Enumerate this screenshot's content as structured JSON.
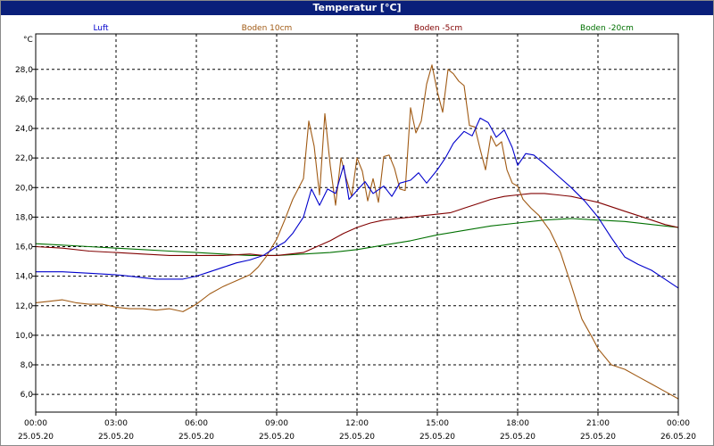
{
  "window": {
    "title": "Temperatur [°C]"
  },
  "chart_data": {
    "type": "line",
    "title": "Temperatur [°C]",
    "ylabel": "°C",
    "xlabel": "",
    "xlim": [
      0,
      24
    ],
    "ylim": [
      4.8,
      30.4
    ],
    "y_ticks": [
      6.0,
      8.0,
      10.0,
      12.0,
      14.0,
      16.0,
      18.0,
      20.0,
      22.0,
      24.0,
      26.0,
      28.0
    ],
    "y_tick_labels": [
      "6,0",
      "8,0",
      "10,0",
      "12,0",
      "14,0",
      "16,0",
      "18,0",
      "20,0",
      "22,0",
      "24,0",
      "26,0",
      "28,0"
    ],
    "x_ticks": [
      {
        "t": 0,
        "time": "00:00",
        "date": "25.05.20"
      },
      {
        "t": 3,
        "time": "03:00",
        "date": "25.05.20"
      },
      {
        "t": 6,
        "time": "06:00",
        "date": "25.05.20"
      },
      {
        "t": 9,
        "time": "09:00",
        "date": "25.05.20"
      },
      {
        "t": 12,
        "time": "12:00",
        "date": "25.05.20"
      },
      {
        "t": 15,
        "time": "15:00",
        "date": "25.05.20"
      },
      {
        "t": 18,
        "time": "18:00",
        "date": "25.05.20"
      },
      {
        "t": 21,
        "time": "21:00",
        "date": "25.05.20"
      },
      {
        "t": 24,
        "time": "00:00",
        "date": "26.05.20"
      }
    ],
    "grid": true,
    "series": [
      {
        "name": "Luft",
        "color": "#0000cc",
        "x": [
          0,
          1,
          2,
          3,
          3.5,
          4,
          4.5,
          5,
          5.5,
          6,
          6.5,
          7,
          7.5,
          8,
          8.5,
          9,
          9.3,
          9.6,
          10,
          10.3,
          10.6,
          10.9,
          11.2,
          11.5,
          11.7,
          12,
          12.3,
          12.6,
          13,
          13.3,
          13.6,
          14,
          14.3,
          14.6,
          15,
          15.3,
          15.6,
          16,
          16.3,
          16.6,
          16.9,
          17.2,
          17.5,
          17.8,
          18,
          18.3,
          18.6,
          19,
          19.5,
          20,
          20.5,
          21,
          21.5,
          22,
          22.5,
          23,
          23.5,
          24
        ],
        "y": [
          14.3,
          14.3,
          14.2,
          14.1,
          14.0,
          13.9,
          13.8,
          13.8,
          13.8,
          14.0,
          14.3,
          14.6,
          14.9,
          15.1,
          15.4,
          16.0,
          16.3,
          16.9,
          18.0,
          19.9,
          18.8,
          19.9,
          19.6,
          21.5,
          19.2,
          19.8,
          20.4,
          19.6,
          20.1,
          19.4,
          20.3,
          20.5,
          21.0,
          20.3,
          21.2,
          22.0,
          23.0,
          23.8,
          23.5,
          24.7,
          24.4,
          23.4,
          23.9,
          22.7,
          21.5,
          22.3,
          22.2,
          21.6,
          20.8,
          20.0,
          19.1,
          18.0,
          16.6,
          15.3,
          14.8,
          14.4,
          13.8,
          13.2
        ]
      },
      {
        "name": "Boden 10cm",
        "color": "#a05a14",
        "x": [
          0,
          0.5,
          1,
          1.5,
          2,
          2.5,
          3,
          3.5,
          4,
          4.5,
          5,
          5.5,
          6,
          6.5,
          7,
          7.5,
          8,
          8.3,
          8.6,
          9,
          9.3,
          9.6,
          10,
          10.2,
          10.4,
          10.6,
          10.8,
          11,
          11.2,
          11.4,
          11.6,
          11.8,
          12,
          12.2,
          12.4,
          12.6,
          12.8,
          13,
          13.2,
          13.4,
          13.6,
          13.8,
          14,
          14.2,
          14.4,
          14.6,
          14.8,
          15,
          15.2,
          15.4,
          15.6,
          15.8,
          16,
          16.2,
          16.4,
          16.6,
          16.8,
          17,
          17.2,
          17.4,
          17.6,
          17.8,
          18,
          18.2,
          18.5,
          18.8,
          19.2,
          19.6,
          20,
          20.4,
          20.8,
          21,
          21.5,
          22,
          22.5,
          23,
          23.5,
          24
        ],
        "y": [
          12.2,
          12.3,
          12.4,
          12.2,
          12.1,
          12.1,
          11.9,
          11.8,
          11.8,
          11.7,
          11.8,
          11.6,
          12.1,
          12.8,
          13.3,
          13.7,
          14.1,
          14.6,
          15.3,
          16.5,
          17.8,
          19.2,
          20.6,
          24.5,
          22.8,
          19.5,
          25.0,
          21.5,
          18.8,
          22.0,
          20.6,
          19.4,
          22.0,
          21.1,
          19.1,
          20.6,
          19.0,
          22.1,
          22.2,
          21.3,
          19.9,
          19.8,
          25.4,
          23.7,
          24.5,
          27.0,
          28.3,
          26.5,
          25.1,
          28.0,
          27.7,
          27.2,
          26.9,
          24.2,
          24.1,
          22.6,
          21.2,
          23.5,
          22.8,
          23.1,
          21.2,
          20.3,
          20.1,
          19.2,
          18.6,
          18.1,
          17.1,
          15.6,
          13.4,
          11.1,
          9.8,
          9.1,
          8.0,
          7.7,
          7.2,
          6.7,
          6.2,
          5.7
        ]
      },
      {
        "name": "Boden -5cm",
        "color": "#800000",
        "x": [
          0,
          1,
          2,
          3,
          4,
          5,
          6,
          7,
          8,
          8.5,
          9,
          9.5,
          10,
          10.5,
          11,
          11.5,
          12,
          12.5,
          13,
          13.5,
          14,
          14.5,
          15,
          15.5,
          16,
          16.5,
          17,
          17.5,
          18,
          18.5,
          19,
          19.5,
          20,
          20.5,
          21,
          21.5,
          22,
          22.5,
          23,
          23.5,
          24
        ],
        "y": [
          16.0,
          15.9,
          15.7,
          15.6,
          15.5,
          15.4,
          15.4,
          15.4,
          15.5,
          15.4,
          15.4,
          15.5,
          15.6,
          16.0,
          16.4,
          16.9,
          17.3,
          17.6,
          17.8,
          17.9,
          18.0,
          18.1,
          18.2,
          18.3,
          18.6,
          18.9,
          19.2,
          19.4,
          19.5,
          19.6,
          19.6,
          19.5,
          19.4,
          19.2,
          19.0,
          18.7,
          18.4,
          18.1,
          17.8,
          17.5,
          17.3
        ]
      },
      {
        "name": "Boden -20cm",
        "color": "#007000",
        "x": [
          0,
          1,
          2,
          3,
          4,
          5,
          6,
          7,
          8,
          9,
          10,
          11,
          12,
          13,
          14,
          15,
          16,
          17,
          18,
          19,
          20,
          21,
          22,
          23,
          24
        ],
        "y": [
          16.2,
          16.1,
          16.0,
          15.9,
          15.8,
          15.7,
          15.6,
          15.5,
          15.4,
          15.4,
          15.5,
          15.6,
          15.8,
          16.1,
          16.4,
          16.8,
          17.1,
          17.4,
          17.6,
          17.8,
          17.9,
          17.8,
          17.7,
          17.5,
          17.3
        ]
      }
    ]
  }
}
